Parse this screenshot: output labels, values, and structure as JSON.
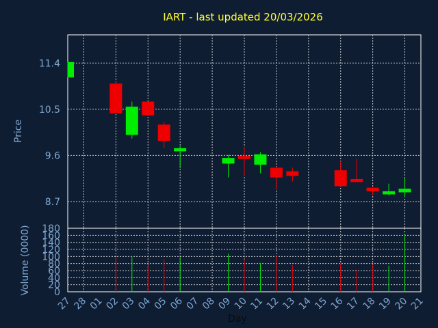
{
  "chart_data": {
    "type": "candlestick",
    "title": "IART - last updated 20/03/2026",
    "xlabel": "Day",
    "price_panel": {
      "ylabel": "Price",
      "yticks": [
        "8.7",
        "9.6",
        "10.5",
        "11.4"
      ],
      "ylim": [
        8.18,
        11.95
      ],
      "grid": true
    },
    "volume_panel": {
      "ylabel": "Volume (0000)",
      "yticks": [
        "0",
        "20",
        "40",
        "60",
        "80",
        "100",
        "120",
        "140",
        "160",
        "180"
      ],
      "ylim": [
        0,
        180
      ],
      "grid": true
    },
    "x_ticks": [
      "27",
      "28",
      "01",
      "02",
      "03",
      "04",
      "05",
      "06",
      "07",
      "08",
      "09",
      "10",
      "11",
      "12",
      "13",
      "14",
      "15",
      "16",
      "17",
      "18",
      "19",
      "20",
      "21"
    ],
    "colors": {
      "background": "#0f1d33",
      "grid": "#c8c8c8",
      "axes": "#ffffff",
      "up": "#00ee00",
      "down": "#ee0000",
      "title": "#ffff33",
      "label": "#7fa7cf"
    },
    "candles": [
      {
        "day": "27",
        "open": 11.12,
        "high": 11.42,
        "low": 11.12,
        "close": 11.42,
        "volume": 0
      },
      {
        "day": "02",
        "open": 11.0,
        "high": 11.04,
        "low": 10.42,
        "close": 10.42,
        "volume": 98
      },
      {
        "day": "03",
        "open": 10.0,
        "high": 10.65,
        "low": 9.93,
        "close": 10.55,
        "volume": 98
      },
      {
        "day": "04",
        "open": 10.65,
        "high": 10.65,
        "low": 10.38,
        "close": 10.38,
        "volume": 77
      },
      {
        "day": "05",
        "open": 10.2,
        "high": 10.25,
        "low": 9.74,
        "close": 9.88,
        "volume": 92
      },
      {
        "day": "06",
        "open": 9.68,
        "high": 9.78,
        "low": 9.35,
        "close": 9.74,
        "volume": 98
      },
      {
        "day": "09",
        "open": 9.44,
        "high": 9.61,
        "low": 9.17,
        "close": 9.55,
        "volume": 108
      },
      {
        "day": "10",
        "open": 9.59,
        "high": 9.76,
        "low": 9.21,
        "close": 9.53,
        "volume": 92
      },
      {
        "day": "11",
        "open": 9.42,
        "high": 9.66,
        "low": 9.25,
        "close": 9.62,
        "volume": 82
      },
      {
        "day": "12",
        "open": 9.36,
        "high": 9.38,
        "low": 8.93,
        "close": 9.17,
        "volume": 102
      },
      {
        "day": "13",
        "open": 9.29,
        "high": 9.36,
        "low": 9.09,
        "close": 9.2,
        "volume": 76
      },
      {
        "day": "16",
        "open": 9.31,
        "high": 9.49,
        "low": 9.0,
        "close": 9.0,
        "volume": 80
      },
      {
        "day": "17",
        "open": 9.14,
        "high": 9.53,
        "low": 9.08,
        "close": 9.08,
        "volume": 62
      },
      {
        "day": "18",
        "open": 8.97,
        "high": 9.0,
        "low": 8.82,
        "close": 8.9,
        "volume": 78
      },
      {
        "day": "19",
        "open": 8.84,
        "high": 9.05,
        "low": 8.82,
        "close": 8.9,
        "volume": 74
      },
      {
        "day": "20",
        "open": 8.88,
        "high": 9.16,
        "low": 8.78,
        "close": 8.95,
        "volume": 162
      }
    ]
  }
}
